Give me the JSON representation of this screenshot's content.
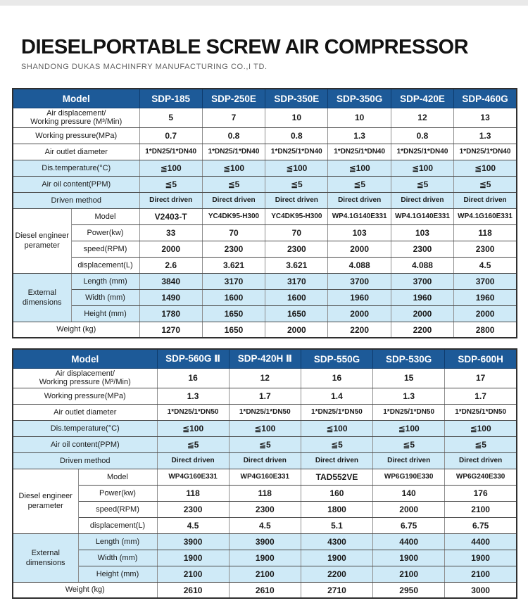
{
  "page": {
    "title": "DIESELPORTABLE SCREW AIR COMPRESSOR",
    "subtitle": "SHANDONG DUKAS MACHINFRY MANUFACTURING CO.,I TD."
  },
  "colors": {
    "header_blue": "#1d5a98",
    "row_blue": "#cfeaf7"
  },
  "tables": [
    {
      "name": "spec-table-sdp-185-to-460g",
      "header": {
        "model_label": "Model",
        "models": [
          "SDP-185",
          "SDP-250E",
          "SDP-350E",
          "SDP-350G",
          "SDP-420E",
          "SDP-460G"
        ]
      },
      "rows": [
        {
          "label": "Air displacement/\nWorking pressure (M³/Min)",
          "values": [
            "5",
            "7",
            "10",
            "10",
            "12",
            "13"
          ],
          "shaded": false,
          "tall": true
        },
        {
          "label": "Working pressure(MPa)",
          "values": [
            "0.7",
            "0.8",
            "0.8",
            "1.3",
            "0.8",
            "1.3"
          ],
          "shaded": false
        },
        {
          "label": "Air outlet diameter",
          "values": [
            "1*DN25/1*DN40",
            "1*DN25/1*DN40",
            "1*DN25/1*DN40",
            "1*DN25/1*DN40",
            "1*DN25/1*DN40",
            "1*DN25/1*DN40"
          ],
          "shaded": false
        },
        {
          "label": "Dis.temperature(°C)",
          "values": [
            "≦100",
            "≦100",
            "≦100",
            "≦100",
            "≦100",
            "≦100"
          ],
          "shaded": true
        },
        {
          "label": "Air oil content(PPM)",
          "values": [
            "≦5",
            "≦5",
            "≦5",
            "≦5",
            "≦5",
            "≦5"
          ],
          "shaded": true
        },
        {
          "label": "Driven method",
          "values": [
            "Direct driven",
            "Direct driven",
            "Direct driven",
            "Direct driven",
            "Direct driven",
            "Direct driven"
          ],
          "shaded": true
        },
        {
          "group": {
            "label": "Diesel engineer perameter",
            "span": 4
          },
          "label": "Model",
          "values": [
            "V2403-T",
            "YC4DK95-H300",
            "YC4DK95-H300",
            "WP4.1G140E331",
            "WP4.1G140E331",
            "WP4.1G160E331"
          ],
          "shaded": false
        },
        {
          "grouped": true,
          "label": "Power(kw)",
          "values": [
            "33",
            "70",
            "70",
            "103",
            "103",
            "118"
          ],
          "shaded": false
        },
        {
          "grouped": true,
          "label": "speed(RPM)",
          "values": [
            "2000",
            "2300",
            "2300",
            "2000",
            "2300",
            "2300"
          ],
          "shaded": false
        },
        {
          "grouped": true,
          "label": "displacement(L)",
          "values": [
            "2.6",
            "3.621",
            "3.621",
            "4.088",
            "4.088",
            "4.5"
          ],
          "shaded": false
        },
        {
          "group": {
            "label": "External dimensions",
            "span": 3
          },
          "label": "Length (mm)",
          "values": [
            "3840",
            "3170",
            "3170",
            "3700",
            "3700",
            "3700"
          ],
          "shaded": true
        },
        {
          "grouped": true,
          "label": "Width (mm)",
          "values": [
            "1490",
            "1600",
            "1600",
            "1960",
            "1960",
            "1960"
          ],
          "shaded": true
        },
        {
          "grouped": true,
          "label": "Height (mm)",
          "values": [
            "1780",
            "1650",
            "1650",
            "2000",
            "2000",
            "2000"
          ],
          "shaded": true
        },
        {
          "label": "Weight (kg)",
          "values": [
            "1270",
            "1650",
            "2000",
            "2200",
            "2200",
            "2800"
          ],
          "shaded": false
        }
      ]
    },
    {
      "name": "spec-table-sdp-560g-to-600h",
      "header": {
        "model_label": "Model",
        "models": [
          "SDP-560G Ⅱ",
          "SDP-420H Ⅱ",
          "SDP-550G",
          "SDP-530G",
          "SDP-600H"
        ]
      },
      "rows": [
        {
          "label": "Air displacement/\nWorking pressure (M³/Min)",
          "values": [
            "16",
            "12",
            "16",
            "15",
            "17"
          ],
          "shaded": false,
          "tall": true
        },
        {
          "label": "Working pressure(MPa)",
          "values": [
            "1.3",
            "1.7",
            "1.4",
            "1.3",
            "1.7"
          ],
          "shaded": false
        },
        {
          "label": "Air outlet diameter",
          "values": [
            "1*DN25/1*DN50",
            "1*DN25/1*DN50",
            "1*DN25/1*DN50",
            "1*DN25/1*DN50",
            "1*DN25/1*DN50"
          ],
          "shaded": false
        },
        {
          "label": "Dis.temperature(°C)",
          "values": [
            "≦100",
            "≦100",
            "≦100",
            "≦100",
            "≦100"
          ],
          "shaded": true
        },
        {
          "label": "Air oil content(PPM)",
          "values": [
            "≦5",
            "≦5",
            "≦5",
            "≦5",
            "≦5"
          ],
          "shaded": true
        },
        {
          "label": "Driven method",
          "values": [
            "Direct driven",
            "Direct driven",
            "Direct driven",
            "Direct driven",
            "Direct driven"
          ],
          "shaded": true
        },
        {
          "group": {
            "label": "Diesel engineer perameter",
            "span": 4
          },
          "label": "Model",
          "values": [
            "WP4G160E331",
            "WP4G160E331",
            "TAD552VE",
            "WP6G190E330",
            "WP6G240E330"
          ],
          "shaded": false
        },
        {
          "grouped": true,
          "label": "Power(kw)",
          "values": [
            "118",
            "118",
            "160",
            "140",
            "176"
          ],
          "shaded": false
        },
        {
          "grouped": true,
          "label": "speed(RPM)",
          "values": [
            "2300",
            "2300",
            "1800",
            "2000",
            "2100"
          ],
          "shaded": false
        },
        {
          "grouped": true,
          "label": "displacement(L)",
          "values": [
            "4.5",
            "4.5",
            "5.1",
            "6.75",
            "6.75"
          ],
          "shaded": false
        },
        {
          "group": {
            "label": "External dimensions",
            "span": 3
          },
          "label": "Length (mm)",
          "values": [
            "3900",
            "3900",
            "4300",
            "4400",
            "4400"
          ],
          "shaded": true
        },
        {
          "grouped": true,
          "label": "Width (mm)",
          "values": [
            "1900",
            "1900",
            "1900",
            "1900",
            "1900"
          ],
          "shaded": true
        },
        {
          "grouped": true,
          "label": "Height (mm)",
          "values": [
            "2100",
            "2100",
            "2200",
            "2100",
            "2100"
          ],
          "shaded": true
        },
        {
          "label": "Weight (kg)",
          "values": [
            "2610",
            "2610",
            "2710",
            "2950",
            "3000"
          ],
          "shaded": false
        }
      ]
    }
  ]
}
